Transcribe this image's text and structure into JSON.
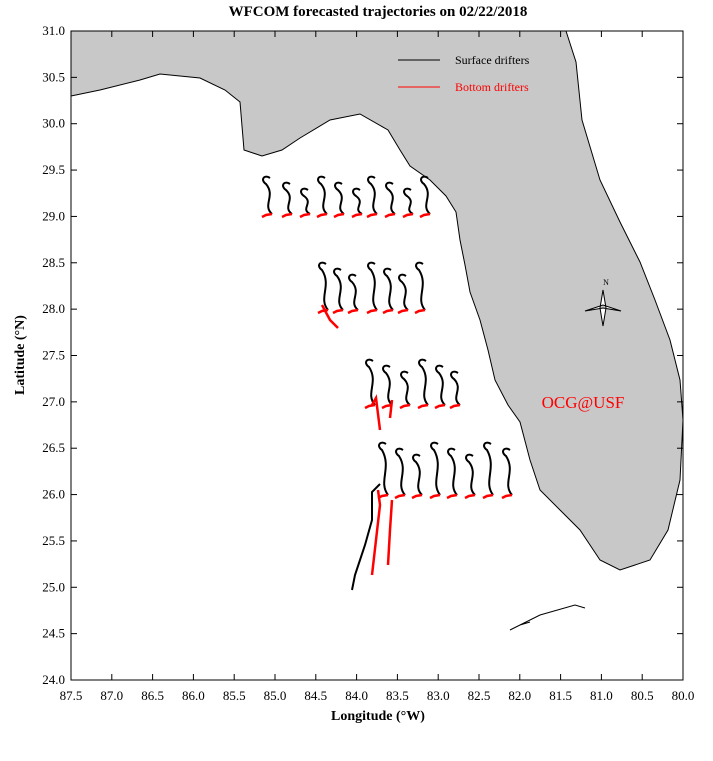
{
  "map": {
    "title": "WFCOM forecasted trajectories on 02/22/2018",
    "xlabel": "Longitude (°W)",
    "ylabel": "Latitude (°N)",
    "xlim": [
      87.5,
      80.0
    ],
    "ylim": [
      24.0,
      31.0
    ],
    "xticks": [
      87.5,
      {
        "value": 87,
        "label": "87.0"
      },
      86.5,
      {
        "value": 86,
        "label": "86.0"
      },
      85.5,
      {
        "value": 85,
        "label": "85.0"
      },
      84.5,
      {
        "value": 84,
        "label": "84.0"
      },
      83.5,
      {
        "value": 83,
        "label": "83.0"
      },
      82.5,
      {
        "value": 82,
        "label": "82.0"
      },
      81.5,
      {
        "value": 81,
        "label": "81.0"
      },
      80.5,
      {
        "value": 80,
        "label": "80.0"
      }
    ],
    "yticks": [
      {
        "value": 24,
        "label": "24.0"
      },
      24.5,
      {
        "value": 25,
        "label": "25.0"
      },
      25.5,
      {
        "value": 26,
        "label": "26.0"
      },
      26.5,
      {
        "value": 27,
        "label": "27.0"
      },
      27.5,
      {
        "value": 28,
        "label": "28.0"
      },
      28.5,
      {
        "value": 29,
        "label": "29.0"
      },
      29.5,
      {
        "value": 30,
        "label": "30.0"
      },
      30.5,
      {
        "value": 31,
        "label": "31.0"
      }
    ],
    "legend": [
      {
        "name": "Surface drifters",
        "color": "#000000"
      },
      {
        "name": "Bottom drifters",
        "color": "#ff0000"
      }
    ],
    "annotation": {
      "text": "OCG@USF",
      "color": "#ff0000"
    },
    "compass": "N"
  }
}
